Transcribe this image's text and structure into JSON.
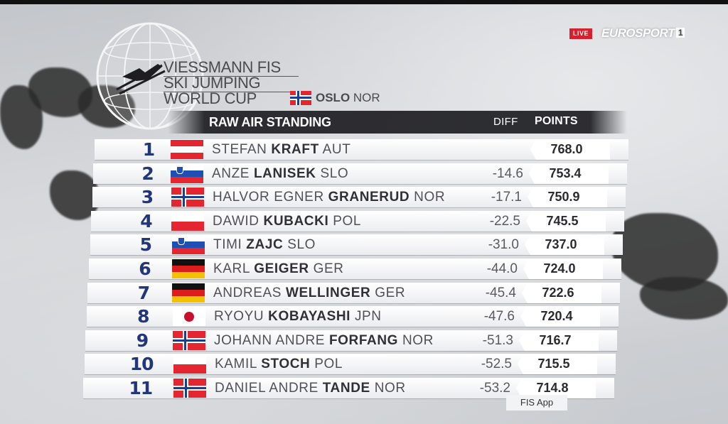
{
  "broadcaster": {
    "live": "LIVE",
    "brand": "EUROSPORT",
    "channel": "1"
  },
  "event": {
    "line1": "VIESSMANN FIS",
    "line2": "SKI JUMPING",
    "line3": "WORLD CUP",
    "location": "OSLO",
    "location_country": "NOR"
  },
  "table": {
    "title": "RAW AIR STANDING",
    "diff_header": "DIFF",
    "points_header": "POINTS",
    "rows": [
      {
        "rank": "1",
        "first": "STEFAN",
        "last": "KRAFT",
        "country": "AUT",
        "diff": "",
        "points": "768.0"
      },
      {
        "rank": "2",
        "first": "ANZE",
        "last": "LANISEK",
        "country": "SLO",
        "diff": "-14.6",
        "points": "753.4"
      },
      {
        "rank": "3",
        "first": "HALVOR EGNER",
        "last": "GRANERUD",
        "country": "NOR",
        "diff": "-17.1",
        "points": "750.9"
      },
      {
        "rank": "4",
        "first": "DAWID",
        "last": "KUBACKI",
        "country": "POL",
        "diff": "-22.5",
        "points": "745.5"
      },
      {
        "rank": "5",
        "first": "TIMI",
        "last": "ZAJC",
        "country": "SLO",
        "diff": "-31.0",
        "points": "737.0"
      },
      {
        "rank": "6",
        "first": "KARL",
        "last": "GEIGER",
        "country": "GER",
        "diff": "-44.0",
        "points": "724.0"
      },
      {
        "rank": "7",
        "first": "ANDREAS",
        "last": "WELLINGER",
        "country": "GER",
        "diff": "-45.4",
        "points": "722.6"
      },
      {
        "rank": "8",
        "first": "RYOYU",
        "last": "KOBAYASHI",
        "country": "JPN",
        "diff": "-47.6",
        "points": "720.4"
      },
      {
        "rank": "9",
        "first": "JOHANN ANDRE",
        "last": "FORFANG",
        "country": "NOR",
        "diff": "-51.3",
        "points": "716.7"
      },
      {
        "rank": "10",
        "first": "KAMIL",
        "last": "STOCH",
        "country": "POL",
        "diff": "-52.5",
        "points": "715.5"
      },
      {
        "rank": "11",
        "first": "DANIEL ANDRE",
        "last": "TANDE",
        "country": "NOR",
        "diff": "-53.2",
        "points": "714.8"
      }
    ]
  },
  "footer": "FIS App",
  "colors": {
    "rank_blue": "#22367a",
    "header_dark": "#26262a",
    "live_red": "#d5202e",
    "flag_red": "#e3262f",
    "nor_blue": "#1d3d8f",
    "slo_blue": "#1f4fb3",
    "ger_gold": "#f2c200",
    "jpn_red": "#c8102e"
  },
  "icons": {
    "logo": "fis-globe-ski-jumper-logo",
    "flags": "country-flag-icons"
  }
}
